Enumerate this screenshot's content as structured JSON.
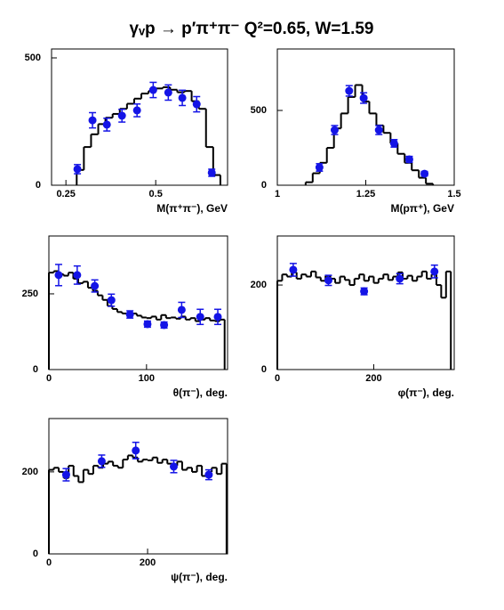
{
  "title": "γᵥp → p′π⁺π⁻   Q²=0.65, W=1.59",
  "chart_data": [
    {
      "type": "histogram",
      "x_label": "M(π⁺π⁻), GeV",
      "xlim": [
        0.21,
        0.7
      ],
      "ylim": [
        0,
        535
      ],
      "xticks": [
        0.25,
        0.5
      ],
      "yticks": [
        0,
        500
      ],
      "bins": [
        0.28,
        0.3,
        0.32,
        0.34,
        0.36,
        0.38,
        0.4,
        0.42,
        0.44,
        0.46,
        0.48,
        0.5,
        0.52,
        0.54,
        0.56,
        0.58,
        0.6,
        0.62,
        0.64,
        0.66,
        0.68
      ],
      "counts": [
        60,
        150,
        200,
        240,
        265,
        280,
        300,
        320,
        340,
        360,
        370,
        380,
        385,
        375,
        365,
        370,
        330,
        300,
        150,
        40
      ],
      "color": "#000000",
      "points": {
        "color": "#1414e6",
        "x": [
          0.282,
          0.324,
          0.364,
          0.406,
          0.448,
          0.493,
          0.535,
          0.574,
          0.614,
          0.656
        ],
        "values": [
          63,
          255,
          238,
          273,
          294,
          374,
          364,
          343,
          318,
          49
        ],
        "errors": [
          18,
          30,
          25,
          25,
          25,
          30,
          30,
          30,
          30,
          14
        ]
      }
    },
    {
      "type": "histogram",
      "x_label": "M(pπ⁺), GeV",
      "xlim": [
        1,
        1.5
      ],
      "ylim": [
        0,
        911
      ],
      "xticks": [
        1,
        1.25,
        1.5
      ],
      "yticks": [
        0,
        500
      ],
      "bins": [
        1.08,
        1.1,
        1.12,
        1.14,
        1.16,
        1.18,
        1.2,
        1.22,
        1.24,
        1.26,
        1.28,
        1.3,
        1.32,
        1.34,
        1.36,
        1.38,
        1.4,
        1.42,
        1.44
      ],
      "counts": [
        20,
        80,
        150,
        250,
        380,
        480,
        590,
        670,
        560,
        480,
        400,
        350,
        280,
        210,
        150,
        100,
        50,
        10
      ],
      "color": "#000000",
      "points": {
        "color": "#1414e6",
        "x": [
          1.119,
          1.162,
          1.203,
          1.244,
          1.287,
          1.33,
          1.373,
          1.416
        ],
        "values": [
          119,
          369,
          631,
          583,
          369,
          280,
          173,
          77
        ],
        "errors": [
          25,
          30,
          35,
          35,
          30,
          25,
          20,
          15
        ]
      }
    },
    {
      "type": "histogram",
      "x_label": "θ(π⁻), deg.",
      "xlim": [
        0,
        183
      ],
      "ylim": [
        0,
        441
      ],
      "xticks": [
        0,
        100
      ],
      "yticks": [
        0,
        250
      ],
      "bins": [
        0,
        5,
        10,
        15,
        20,
        25,
        30,
        35,
        40,
        45,
        50,
        55,
        60,
        65,
        70,
        75,
        80,
        85,
        90,
        95,
        100,
        105,
        110,
        115,
        120,
        125,
        130,
        135,
        140,
        145,
        150,
        155,
        160,
        165,
        170,
        175,
        180
      ],
      "counts": [
        320,
        325,
        315,
        310,
        320,
        300,
        285,
        290,
        270,
        260,
        245,
        230,
        210,
        200,
        190,
        185,
        180,
        185,
        178,
        172,
        170,
        175,
        165,
        180,
        170,
        172,
        168,
        175,
        165,
        170,
        160,
        165,
        170,
        162,
        160,
        165
      ],
      "color": "#000000",
      "points": {
        "color": "#1414e6",
        "x": [
          10,
          29,
          47,
          64,
          83,
          101,
          118,
          136,
          155,
          173
        ],
        "values": [
          312,
          312,
          276,
          229,
          182,
          150,
          147,
          197,
          174,
          174
        ],
        "errors": [
          35,
          30,
          20,
          20,
          12,
          10,
          10,
          25,
          25,
          25
        ]
      }
    },
    {
      "type": "histogram",
      "x_label": "φ(π⁻), deg.",
      "xlim": [
        0,
        367
      ],
      "ylim": [
        0,
        316
      ],
      "xticks": [
        0,
        200
      ],
      "yticks": [
        0,
        200
      ],
      "bins": [
        0,
        10,
        20,
        30,
        40,
        50,
        60,
        70,
        80,
        90,
        100,
        110,
        120,
        130,
        140,
        150,
        160,
        170,
        180,
        190,
        200,
        210,
        220,
        230,
        240,
        250,
        260,
        270,
        280,
        290,
        300,
        310,
        320,
        330,
        340,
        350,
        360
      ],
      "counts": [
        210,
        225,
        220,
        230,
        215,
        225,
        220,
        232,
        218,
        210,
        222,
        215,
        205,
        220,
        212,
        200,
        215,
        225,
        210,
        220,
        205,
        215,
        225,
        212,
        220,
        230,
        215,
        222,
        210,
        220,
        232,
        215,
        225,
        200,
        170,
        232
      ],
      "color": "#000000",
      "points": {
        "color": "#1414e6",
        "x": [
          33,
          106,
          180,
          254,
          326
        ],
        "values": [
          236,
          211,
          185,
          215,
          232
        ],
        "errors": [
          15,
          12,
          8,
          12,
          15
        ]
      }
    },
    {
      "type": "histogram",
      "x_label": "ψ(π⁻), deg.",
      "xlim": [
        0,
        362
      ],
      "ylim": [
        0,
        330
      ],
      "xticks": [
        0,
        200
      ],
      "yticks": [
        0,
        200
      ],
      "bins": [
        0,
        10,
        20,
        30,
        40,
        50,
        60,
        70,
        80,
        90,
        100,
        110,
        120,
        130,
        140,
        150,
        160,
        170,
        180,
        190,
        200,
        210,
        220,
        230,
        240,
        250,
        260,
        270,
        280,
        290,
        300,
        310,
        320,
        330,
        340,
        350,
        360
      ],
      "counts": [
        205,
        210,
        200,
        185,
        215,
        190,
        175,
        205,
        195,
        215,
        210,
        220,
        225,
        215,
        210,
        230,
        240,
        235,
        225,
        230,
        228,
        235,
        222,
        230,
        220,
        215,
        225,
        205,
        210,
        200,
        215,
        190,
        200,
        210,
        195,
        220
      ],
      "color": "#000000",
      "points": {
        "color": "#1414e6",
        "x": [
          35,
          107,
          176,
          253,
          324
        ],
        "values": [
          193,
          226,
          252,
          213,
          193
        ],
        "errors": [
          15,
          15,
          20,
          15,
          12
        ]
      }
    }
  ]
}
